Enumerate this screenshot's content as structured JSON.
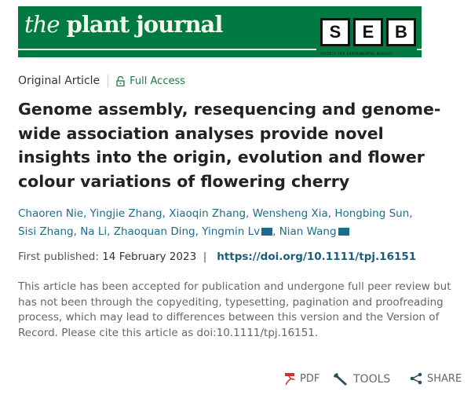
{
  "journal": {
    "title_italic": "the",
    "title": "plant journal",
    "seb_letters": [
      "S",
      "E",
      "B"
    ],
    "seb_subtitle": "SOCIETY FOR EXPERIMENTAL BIOLOGY",
    "brand_color": "#007a40"
  },
  "article": {
    "type": "Original Article",
    "access": "Full Access",
    "title": "Genome assembly, resequencing and genome-wide association analyses provide novel insights into the origin, evolution and flower colour variations of flowering cherry",
    "authors": [
      {
        "name": "Chaoren Nie"
      },
      {
        "name": "Yingjie Zhang"
      },
      {
        "name": "Xiaoqin Zhang"
      },
      {
        "name": "Wensheng Xia"
      },
      {
        "name": "Hongbing Sun"
      },
      {
        "name": "Sisi Zhang"
      },
      {
        "name": "Na Li"
      },
      {
        "name": "Zhaoquan Ding"
      },
      {
        "name": "Yingmin Lv",
        "mail": true
      },
      {
        "name": "Nian Wang",
        "mail": true
      }
    ],
    "published_label": "First published:",
    "published_date": "14 February 2023",
    "doi": "https://doi.org/10.1111/tpj.16151",
    "note": "This article has been accepted for publication and undergone full peer review but has not been through the copyediting, typesetting, pagination and proofreading process, which may lead to differences between this version and the Version of Record. Please cite this article as doi:10.1111/tpj.16151."
  },
  "toolbar": {
    "pdf": "PDF",
    "tools": "TOOLS",
    "share": "SHARE"
  }
}
